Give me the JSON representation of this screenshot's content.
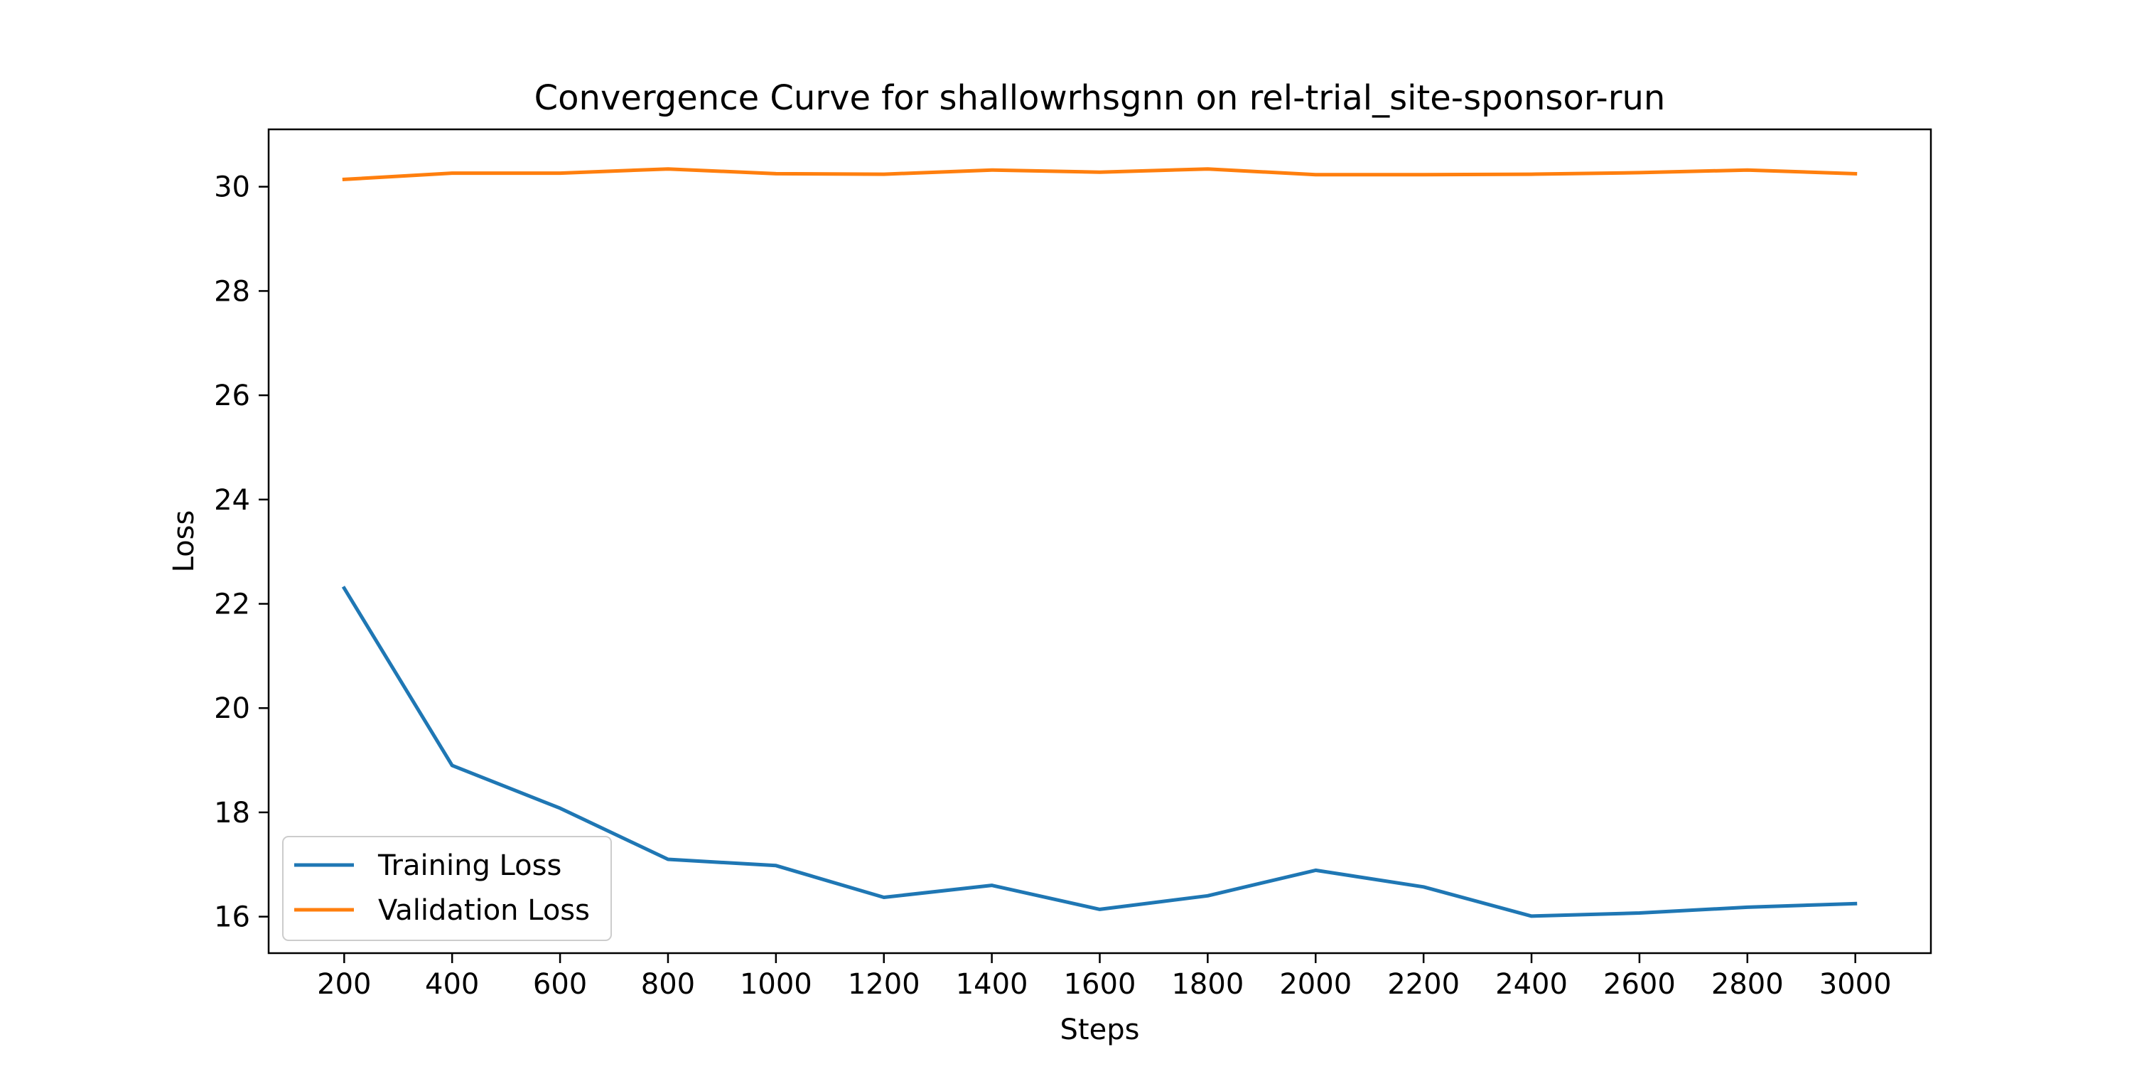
{
  "chart_data": {
    "type": "line",
    "title": "Convergence Curve for shallowrhsgnn on rel-trial_site-sponsor-run",
    "xlabel": "Steps",
    "ylabel": "Loss",
    "x": [
      200,
      400,
      600,
      800,
      1000,
      1200,
      1400,
      1600,
      1800,
      2000,
      2200,
      2400,
      2600,
      2800,
      3000
    ],
    "xticks": [
      200,
      400,
      600,
      800,
      1000,
      1200,
      1400,
      1600,
      1800,
      2000,
      2200,
      2400,
      2600,
      2800,
      3000
    ],
    "yticks": [
      16,
      18,
      20,
      22,
      24,
      26,
      28,
      30
    ],
    "xlim": [
      60,
      3140
    ],
    "ylim": [
      15.3,
      31.1
    ],
    "grid": false,
    "legend_position": "lower-left",
    "series": [
      {
        "name": "Training Loss",
        "color": "#1f77b4",
        "values": [
          22.3,
          18.9,
          18.08,
          17.1,
          16.98,
          16.37,
          16.6,
          16.14,
          16.4,
          16.89,
          16.57,
          16.01,
          16.07,
          16.18,
          16.25
        ]
      },
      {
        "name": "Validation Loss",
        "color": "#ff7f0e",
        "values": [
          30.14,
          30.26,
          30.26,
          30.34,
          30.25,
          30.24,
          30.32,
          30.28,
          30.34,
          30.23,
          30.23,
          30.24,
          30.27,
          30.32,
          30.25
        ]
      }
    ]
  }
}
